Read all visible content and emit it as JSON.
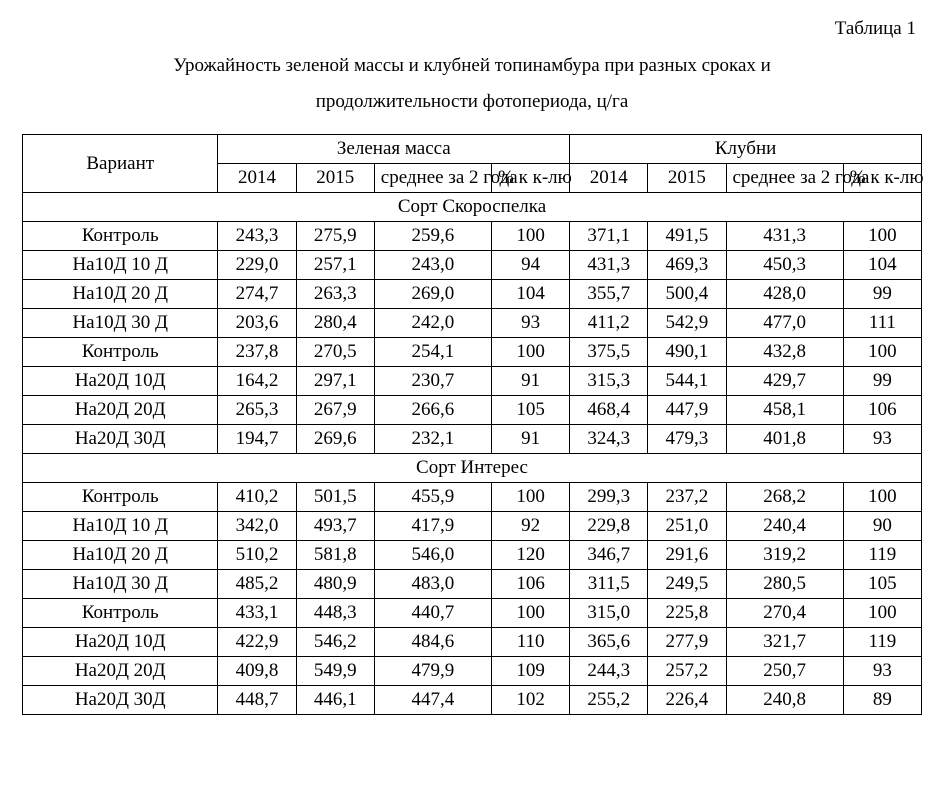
{
  "tableLabel": "Таблица 1",
  "titleLine1": "Урожайность зеленой массы и клубней топинамбура при разных сроках и",
  "titleLine2": "продолжительности фотопериода, ц/га",
  "header": {
    "variant": "Вариант",
    "green": "Зеленая масса",
    "tubers": "Клубни",
    "y2014": "2014",
    "y2015": "2015",
    "avg": "среднее за 2 года",
    "pct": "% к к-лю"
  },
  "section1": "Сорт Скороспелка",
  "section2": "Сорт Интерес",
  "rows1": [
    {
      "v": "Контроль",
      "g14": "243,3",
      "g15": "275,9",
      "gavg": "259,6",
      "gpct": "100",
      "t14": "371,1",
      "t15": "491,5",
      "tavg": "431,3",
      "tpct": "100"
    },
    {
      "v": "На10Д 10 Д",
      "g14": "229,0",
      "g15": "257,1",
      "gavg": "243,0",
      "gpct": "94",
      "t14": "431,3",
      "t15": "469,3",
      "tavg": "450,3",
      "tpct": "104"
    },
    {
      "v": "На10Д 20 Д",
      "g14": "274,7",
      "g15": "263,3",
      "gavg": "269,0",
      "gpct": "104",
      "t14": "355,7",
      "t15": "500,4",
      "tavg": "428,0",
      "tpct": "99"
    },
    {
      "v": "На10Д 30 Д",
      "g14": "203,6",
      "g15": "280,4",
      "gavg": "242,0",
      "gpct": "93",
      "t14": "411,2",
      "t15": "542,9",
      "tavg": "477,0",
      "tpct": "111"
    },
    {
      "v": "Контроль",
      "g14": "237,8",
      "g15": "270,5",
      "gavg": "254,1",
      "gpct": "100",
      "t14": "375,5",
      "t15": "490,1",
      "tavg": "432,8",
      "tpct": "100"
    },
    {
      "v": "На20Д 10Д",
      "g14": "164,2",
      "g15": "297,1",
      "gavg": "230,7",
      "gpct": "91",
      "t14": "315,3",
      "t15": "544,1",
      "tavg": "429,7",
      "tpct": "99"
    },
    {
      "v": "На20Д 20Д",
      "g14": "265,3",
      "g15": "267,9",
      "gavg": "266,6",
      "gpct": "105",
      "t14": "468,4",
      "t15": "447,9",
      "tavg": "458,1",
      "tpct": "106"
    },
    {
      "v": "На20Д 30Д",
      "g14": "194,7",
      "g15": "269,6",
      "gavg": "232,1",
      "gpct": "91",
      "t14": "324,3",
      "t15": "479,3",
      "tavg": "401,8",
      "tpct": "93"
    }
  ],
  "rows2": [
    {
      "v": "Контроль",
      "g14": "410,2",
      "g15": "501,5",
      "gavg": "455,9",
      "gpct": "100",
      "t14": "299,3",
      "t15": "237,2",
      "tavg": "268,2",
      "tpct": "100"
    },
    {
      "v": "На10Д 10 Д",
      "g14": "342,0",
      "g15": "493,7",
      "gavg": "417,9",
      "gpct": "92",
      "t14": "229,8",
      "t15": "251,0",
      "tavg": "240,4",
      "tpct": "90"
    },
    {
      "v": "На10Д 20 Д",
      "g14": "510,2",
      "g15": "581,8",
      "gavg": "546,0",
      "gpct": "120",
      "t14": "346,7",
      "t15": "291,6",
      "tavg": "319,2",
      "tpct": "119"
    },
    {
      "v": "На10Д 30 Д",
      "g14": "485,2",
      "g15": "480,9",
      "gavg": "483,0",
      "gpct": "106",
      "t14": "311,5",
      "t15": "249,5",
      "tavg": "280,5",
      "tpct": "105"
    },
    {
      "v": "Контроль",
      "g14": "433,1",
      "g15": "448,3",
      "gavg": "440,7",
      "gpct": "100",
      "t14": "315,0",
      "t15": "225,8",
      "tavg": "270,4",
      "tpct": "100"
    },
    {
      "v": "На20Д 10Д",
      "g14": "422,9",
      "g15": "546,2",
      "gavg": "484,6",
      "gpct": "110",
      "t14": "365,6",
      "t15": "277,9",
      "tavg": "321,7",
      "tpct": "119"
    },
    {
      "v": "На20Д 20Д",
      "g14": "409,8",
      "g15": "549,9",
      "gavg": "479,9",
      "gpct": "109",
      "t14": "244,3",
      "t15": "257,2",
      "tavg": "250,7",
      "tpct": "93"
    },
    {
      "v": "На20Д 30Д",
      "g14": "448,7",
      "g15": "446,1",
      "gavg": "447,4",
      "gpct": "102",
      "t14": "255,2",
      "t15": "226,4",
      "tavg": "240,8",
      "tpct": "89"
    }
  ]
}
